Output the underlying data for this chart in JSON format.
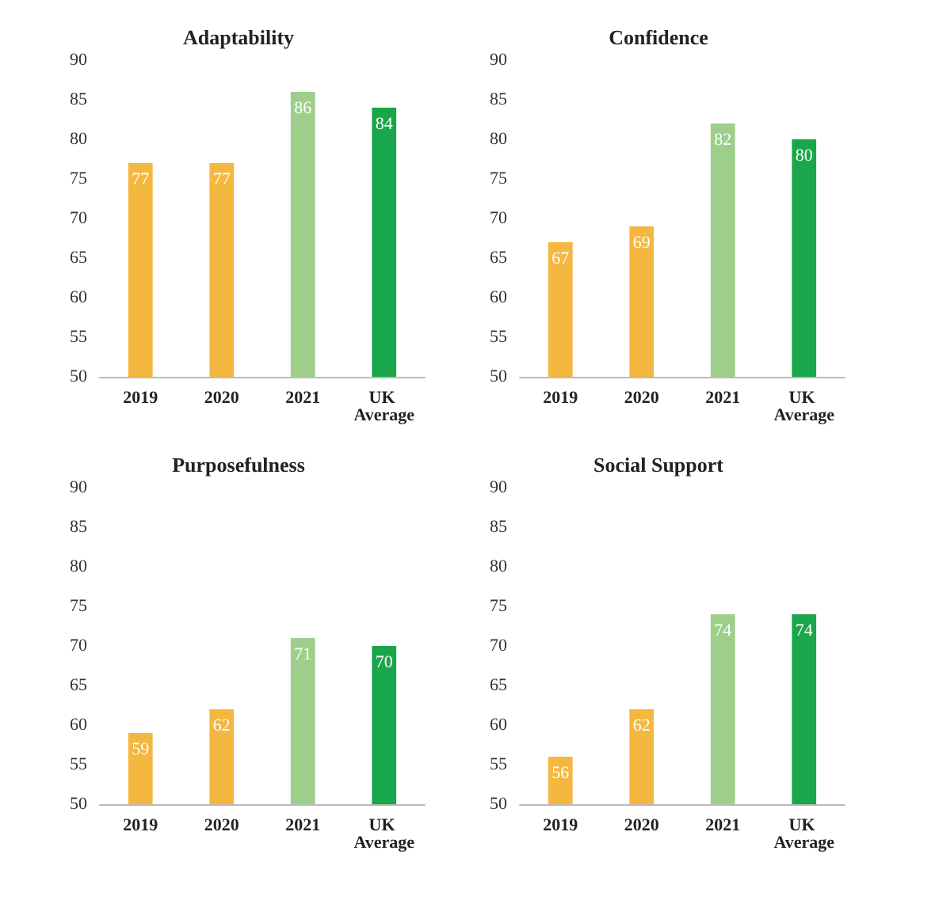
{
  "chart_data": [
    {
      "type": "bar",
      "title": "Adaptability",
      "categories": [
        "2019",
        "2020",
        "2021",
        "UK Average"
      ],
      "values": [
        77,
        77,
        86,
        84
      ],
      "colors": [
        "#f4b73f",
        "#f4b73f",
        "#9dcf8a",
        "#1aa64b"
      ],
      "ylim": [
        50,
        90
      ],
      "yticks": [
        50,
        55,
        60,
        65,
        70,
        75,
        80,
        85,
        90
      ],
      "data_labels": true,
      "grid": false
    },
    {
      "type": "bar",
      "title": "Confidence",
      "categories": [
        "2019",
        "2020",
        "2021",
        "UK Average"
      ],
      "values": [
        67,
        69,
        82,
        80
      ],
      "colors": [
        "#f4b73f",
        "#f4b73f",
        "#9dcf8a",
        "#1aa64b"
      ],
      "ylim": [
        50,
        90
      ],
      "yticks": [
        50,
        55,
        60,
        65,
        70,
        75,
        80,
        85,
        90
      ],
      "data_labels": true,
      "grid": false
    },
    {
      "type": "bar",
      "title": "Purposefulness",
      "categories": [
        "2019",
        "2020",
        "2021",
        "UK Average"
      ],
      "values": [
        59,
        62,
        71,
        70
      ],
      "colors": [
        "#f4b73f",
        "#f4b73f",
        "#9dcf8a",
        "#1aa64b"
      ],
      "ylim": [
        50,
        90
      ],
      "yticks": [
        50,
        55,
        60,
        65,
        70,
        75,
        80,
        85,
        90
      ],
      "data_labels": true,
      "grid": false
    },
    {
      "type": "bar",
      "title": "Social Support",
      "categories": [
        "2019",
        "2020",
        "2021",
        "UK Average"
      ],
      "values": [
        56,
        62,
        74,
        74
      ],
      "colors": [
        "#f4b73f",
        "#f4b73f",
        "#9dcf8a",
        "#1aa64b"
      ],
      "ylim": [
        50,
        90
      ],
      "yticks": [
        50,
        55,
        60,
        65,
        70,
        75,
        80,
        85,
        90
      ],
      "data_labels": true,
      "grid": false
    }
  ]
}
